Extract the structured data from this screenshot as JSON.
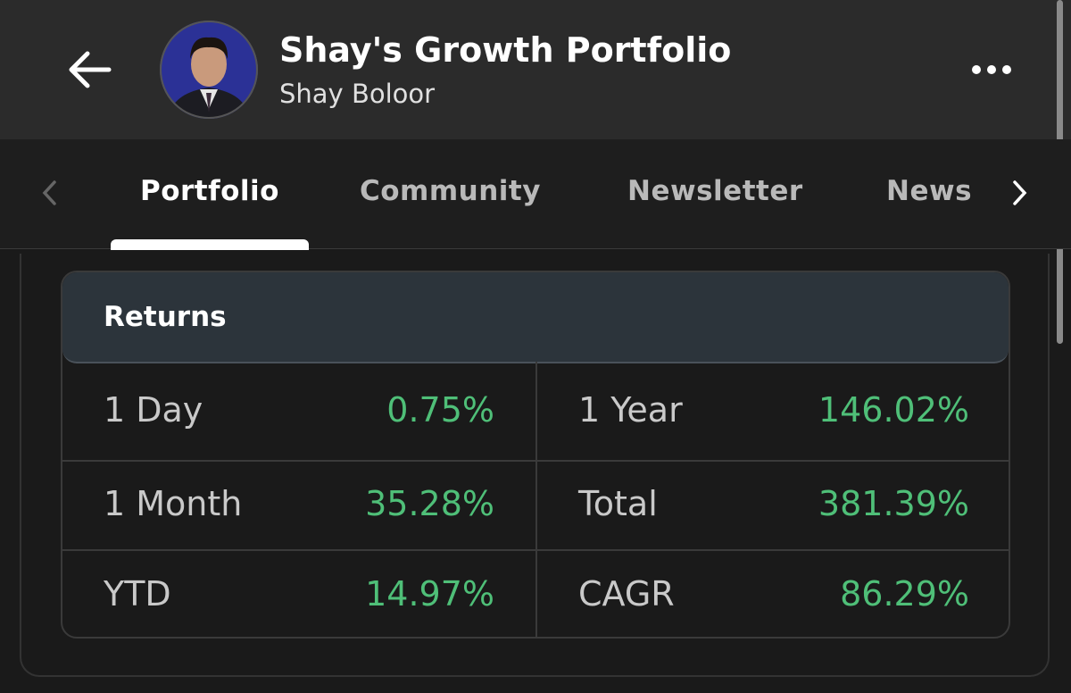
{
  "header": {
    "title": "Shay's Growth Portfolio",
    "subtitle": "Shay Boloor"
  },
  "tabs": [
    "Portfolio",
    "Community",
    "Newsletter",
    "News"
  ],
  "active_tab": "Portfolio",
  "returns": {
    "title": "Returns",
    "rows": [
      [
        {
          "label": "1 Day",
          "value": "0.75%"
        },
        {
          "label": "1 Year",
          "value": "146.02%"
        }
      ],
      [
        {
          "label": "1 Month",
          "value": "35.28%"
        },
        {
          "label": "Total",
          "value": "381.39%"
        }
      ],
      [
        {
          "label": "YTD",
          "value": "14.97%"
        },
        {
          "label": "CAGR",
          "value": "86.29%"
        }
      ]
    ]
  }
}
